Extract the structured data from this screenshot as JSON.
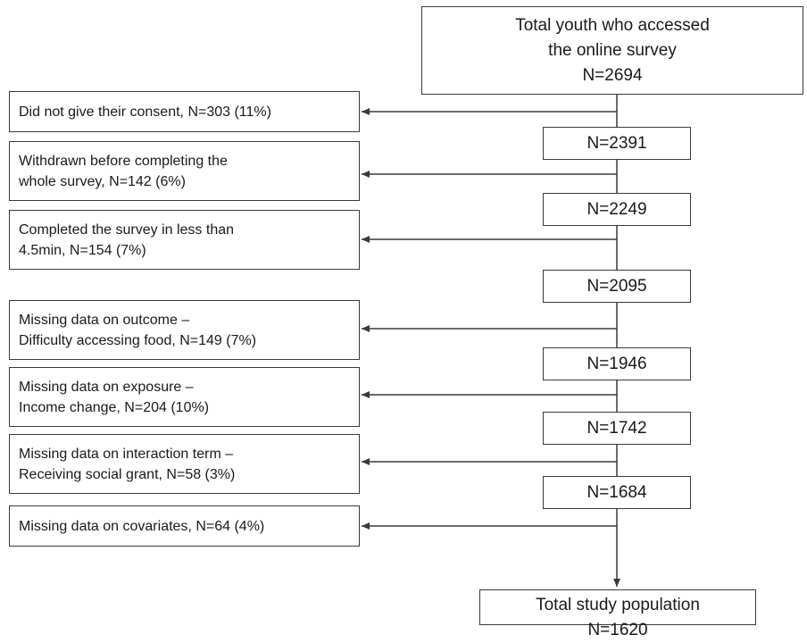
{
  "top_box": {
    "lines": [
      "Total youth who accessed",
      "the online survey",
      "N=2694"
    ]
  },
  "steps": [
    "N=2391",
    "N=2249",
    "N=2095",
    "N=1946",
    "N=1742",
    "N=1684"
  ],
  "exclusions": [
    {
      "lines": [
        "Did not give their consent, N=303 (11%)"
      ]
    },
    {
      "lines": [
        "Withdrawn before completing the",
        "whole survey, N=142 (6%)"
      ]
    },
    {
      "lines": [
        "Completed the survey in less than",
        "4.5min, N=154 (7%)"
      ]
    },
    {
      "lines": [
        "Missing data on outcome –",
        "Difficulty accessing food, N=149 (7%)"
      ]
    },
    {
      "lines": [
        "Missing data on exposure –",
        "Income change, N=204 (10%)"
      ]
    },
    {
      "lines": [
        "Missing data on interaction term –",
        "Receiving social grant, N=58 (3%)"
      ]
    },
    {
      "lines": [
        "Missing data on covariates, N=64 (4%)"
      ]
    }
  ],
  "final_box": {
    "lines": [
      "Total study population",
      "N=1620"
    ]
  }
}
